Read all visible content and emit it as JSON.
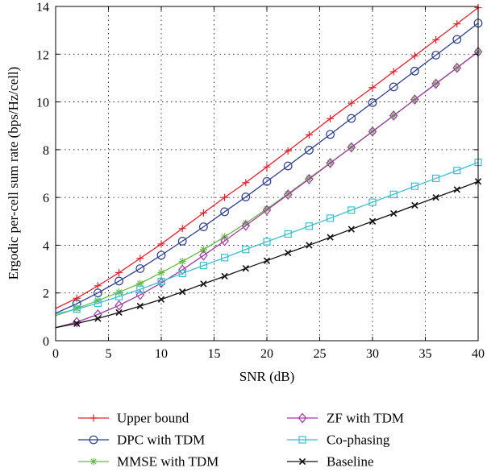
{
  "chart_data": {
    "type": "line",
    "xlabel": "SNR (dB)",
    "ylabel": "Ergodic per-cell sum rate (bps/Hz/cell)",
    "xlim": [
      0,
      40
    ],
    "ylim": [
      0,
      14
    ],
    "xticks": [
      0,
      5,
      10,
      15,
      20,
      25,
      30,
      35,
      40
    ],
    "yticks": [
      0,
      2,
      4,
      6,
      8,
      10,
      12,
      14
    ],
    "grid": true,
    "legend_position": "bottom",
    "x": [
      0,
      2,
      4,
      6,
      8,
      10,
      12,
      14,
      16,
      18,
      20,
      22,
      24,
      26,
      28,
      30,
      32,
      34,
      36,
      38,
      40
    ],
    "series": [
      {
        "name": "Upper bound",
        "color": "#e8202a",
        "marker": "plus",
        "values": [
          1.35,
          1.78,
          2.3,
          2.85,
          3.45,
          4.05,
          4.7,
          5.35,
          6.0,
          6.62,
          7.28,
          7.95,
          8.62,
          9.3,
          9.95,
          10.6,
          11.27,
          11.93,
          12.6,
          13.27,
          13.95
        ]
      },
      {
        "name": "DPC with TDM",
        "color": "#2b3f8e",
        "marker": "circle",
        "values": [
          1.15,
          1.55,
          2.0,
          2.5,
          3.02,
          3.58,
          4.17,
          4.77,
          5.4,
          6.02,
          6.67,
          7.32,
          7.98,
          8.64,
          9.31,
          9.97,
          10.63,
          11.29,
          11.96,
          12.62,
          13.3
        ]
      },
      {
        "name": "MMSE with TDM",
        "color": "#66bb44",
        "marker": "star",
        "values": [
          1.05,
          1.35,
          1.68,
          2.03,
          2.4,
          2.85,
          3.32,
          3.82,
          4.35,
          4.92,
          5.52,
          6.15,
          6.8,
          7.45,
          8.1,
          8.77,
          9.43,
          10.1,
          10.77,
          11.43,
          12.1
        ]
      },
      {
        "name": "ZF with TDM",
        "color": "#a03aa5",
        "marker": "diamond",
        "values": [
          0.55,
          0.78,
          1.1,
          1.48,
          1.92,
          2.42,
          2.97,
          3.57,
          4.18,
          4.82,
          5.47,
          6.12,
          6.77,
          7.44,
          8.1,
          8.76,
          9.43,
          10.1,
          10.76,
          11.43,
          12.1
        ]
      },
      {
        "name": "Co-phasing",
        "color": "#3bbfd0",
        "marker": "square",
        "values": [
          1.12,
          1.32,
          1.57,
          1.85,
          2.15,
          2.48,
          2.82,
          3.15,
          3.48,
          3.82,
          4.15,
          4.47,
          4.8,
          5.13,
          5.47,
          5.8,
          6.13,
          6.47,
          6.8,
          7.13,
          7.47
        ]
      },
      {
        "name": "Baseline",
        "color": "#111111",
        "marker": "x",
        "values": [
          0.55,
          0.72,
          0.93,
          1.18,
          1.45,
          1.73,
          2.05,
          2.38,
          2.7,
          3.03,
          3.35,
          3.68,
          4.0,
          4.33,
          4.67,
          5.0,
          5.33,
          5.67,
          6.0,
          6.33,
          6.67
        ]
      }
    ]
  }
}
